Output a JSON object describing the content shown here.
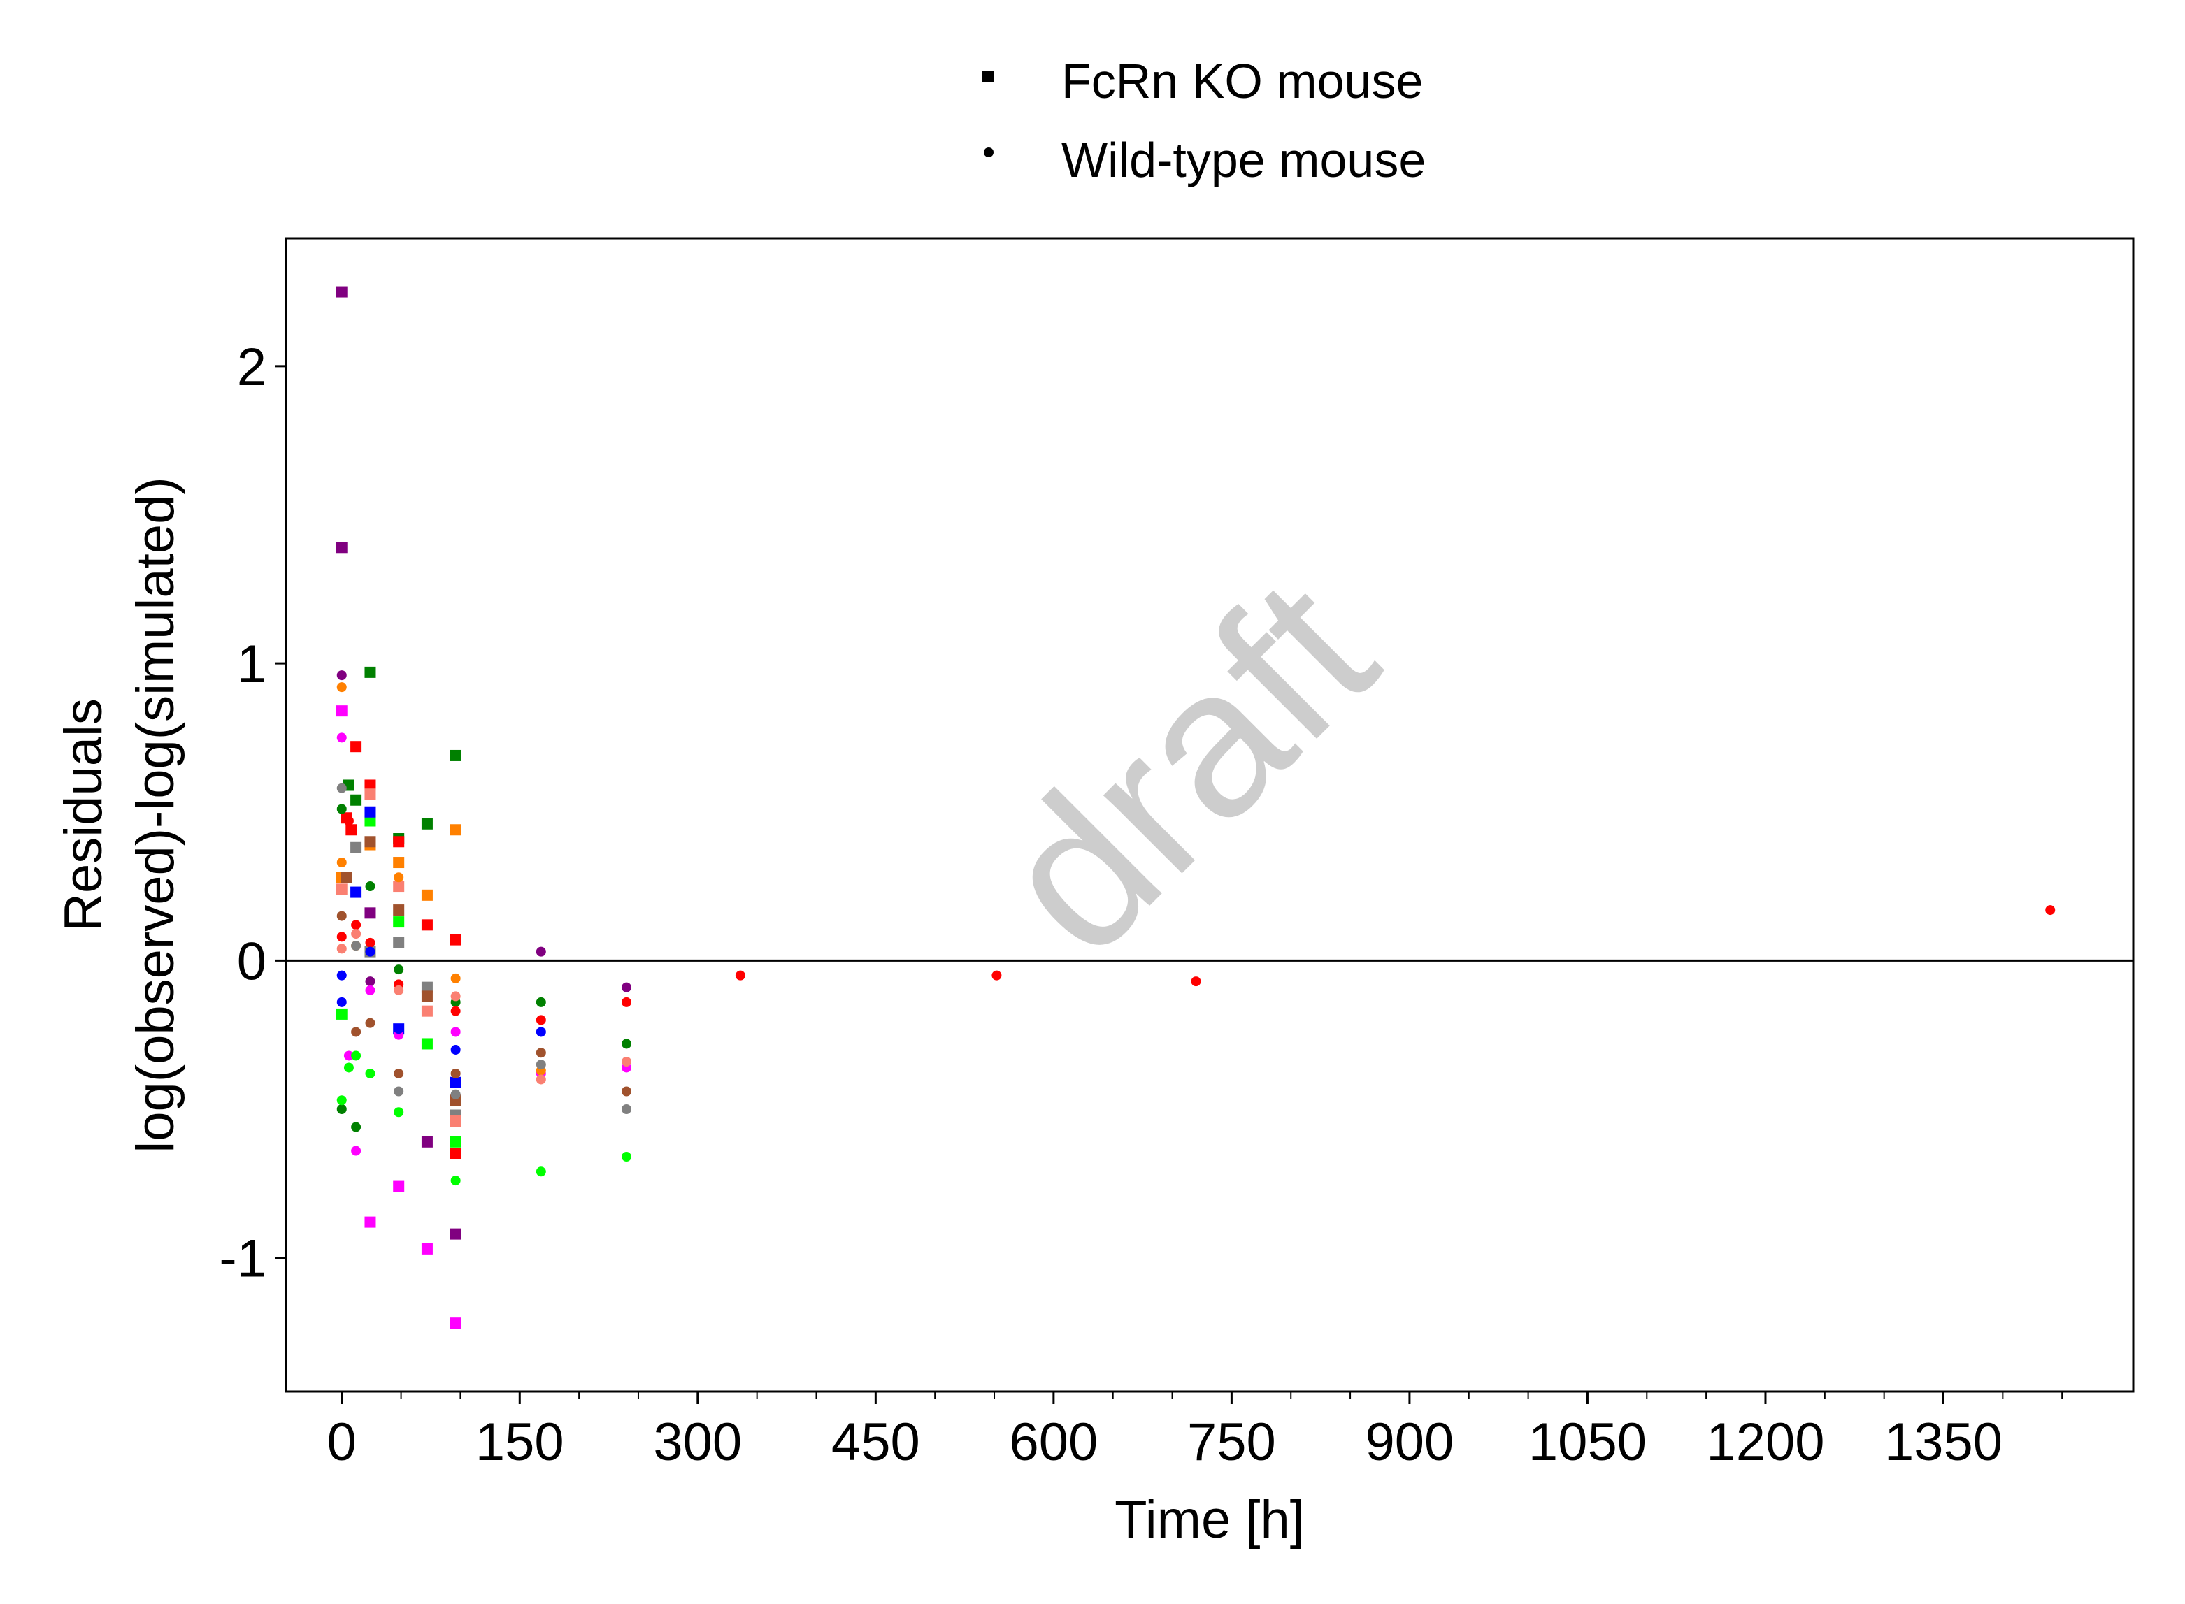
{
  "chart_data": {
    "type": "scatter",
    "xlabel": "Time [h]",
    "ylabel_line1": "Residuals",
    "ylabel_line2": "log(observed)-log(simulated)",
    "xlim": [
      -47,
      1510
    ],
    "ylim": [
      -1.45,
      2.43
    ],
    "xticks": [
      0,
      150,
      300,
      450,
      600,
      750,
      900,
      1050,
      1200,
      1350
    ],
    "xtick_labels": [
      "0",
      "150",
      "300",
      "450",
      "600",
      "750",
      "900",
      "1050",
      "1200",
      "1350"
    ],
    "yticks": [
      -1,
      0,
      1,
      2
    ],
    "ytick_labels": [
      "-1",
      "0",
      "1",
      "2"
    ],
    "reference_line_y": 0,
    "grid": false,
    "watermark": "draft",
    "legend": {
      "placement": "top-center",
      "entries": [
        {
          "label": "FcRn KO mouse",
          "marker": "square"
        },
        {
          "label": "Wild-type mouse",
          "marker": "circle"
        }
      ]
    },
    "series": [
      {
        "marker": "square",
        "color": "#800080",
        "points": [
          [
            0,
            2.25
          ],
          [
            0,
            1.39
          ],
          [
            24,
            0.16
          ],
          [
            72,
            -0.61
          ],
          [
            96,
            -0.92
          ]
        ]
      },
      {
        "marker": "square",
        "color": "#FF00FF",
        "points": [
          [
            0,
            0.84
          ],
          [
            24,
            -0.88
          ],
          [
            48,
            -0.76
          ],
          [
            72,
            -0.97
          ],
          [
            96,
            -1.22
          ]
        ]
      },
      {
        "marker": "square",
        "color": "#008000",
        "points": [
          [
            6,
            0.59
          ],
          [
            12,
            0.54
          ],
          [
            24,
            0.97
          ],
          [
            48,
            0.41
          ],
          [
            72,
            0.46
          ],
          [
            96,
            0.69
          ]
        ]
      },
      {
        "marker": "square",
        "color": "#FF0000",
        "points": [
          [
            4,
            0.48
          ],
          [
            8,
            0.44
          ],
          [
            12,
            0.72
          ],
          [
            24,
            0.59
          ],
          [
            48,
            0.4
          ],
          [
            72,
            0.12
          ],
          [
            96,
            0.07
          ],
          [
            96,
            -0.65
          ]
        ]
      },
      {
        "marker": "square",
        "color": "#FF8000",
        "points": [
          [
            0,
            0.28
          ],
          [
            24,
            0.39
          ],
          [
            48,
            0.33
          ],
          [
            72,
            0.22
          ],
          [
            96,
            0.44
          ]
        ]
      },
      {
        "marker": "square",
        "color": "#00FF00",
        "points": [
          [
            0,
            -0.18
          ],
          [
            24,
            0.47
          ],
          [
            48,
            0.13
          ],
          [
            72,
            -0.28
          ],
          [
            96,
            -0.61
          ]
        ]
      },
      {
        "marker": "square",
        "color": "#0000FF",
        "points": [
          [
            12,
            0.23
          ],
          [
            24,
            0.5
          ],
          [
            48,
            -0.23
          ],
          [
            96,
            -0.41
          ]
        ]
      },
      {
        "marker": "square",
        "color": "#808080",
        "points": [
          [
            12,
            0.38
          ],
          [
            24,
            0.03
          ],
          [
            48,
            0.06
          ],
          [
            72,
            -0.09
          ],
          [
            96,
            -0.52
          ]
        ]
      },
      {
        "marker": "square",
        "color": "#A0522D",
        "points": [
          [
            4,
            0.28
          ],
          [
            24,
            0.4
          ],
          [
            48,
            0.17
          ],
          [
            72,
            -0.12
          ],
          [
            96,
            -0.47
          ]
        ]
      },
      {
        "marker": "square",
        "color": "#FA8072",
        "points": [
          [
            0,
            0.24
          ],
          [
            24,
            0.56
          ],
          [
            48,
            0.25
          ],
          [
            72,
            -0.17
          ],
          [
            96,
            -0.54
          ]
        ]
      },
      {
        "marker": "circle",
        "color": "#800080",
        "points": [
          [
            0,
            0.96
          ],
          [
            24,
            -0.07
          ],
          [
            168,
            0.03
          ],
          [
            240,
            -0.09
          ]
        ]
      },
      {
        "marker": "circle",
        "color": "#FF00FF",
        "points": [
          [
            0,
            0.75
          ],
          [
            6,
            -0.32
          ],
          [
            12,
            -0.64
          ],
          [
            24,
            -0.1
          ],
          [
            48,
            -0.25
          ],
          [
            96,
            -0.24
          ],
          [
            168,
            -0.38
          ],
          [
            240,
            -0.36
          ]
        ]
      },
      {
        "marker": "circle",
        "color": "#FF8000",
        "points": [
          [
            0,
            0.92
          ],
          [
            0,
            0.33
          ],
          [
            12,
            0.05
          ],
          [
            48,
            0.28
          ],
          [
            96,
            -0.06
          ],
          [
            168,
            -0.37
          ]
        ]
      },
      {
        "marker": "circle",
        "color": "#008000",
        "points": [
          [
            0,
            0.51
          ],
          [
            0,
            -0.5
          ],
          [
            12,
            -0.56
          ],
          [
            24,
            0.25
          ],
          [
            48,
            -0.03
          ],
          [
            96,
            -0.14
          ],
          [
            168,
            -0.14
          ],
          [
            240,
            -0.28
          ]
        ]
      },
      {
        "marker": "circle",
        "color": "#00FF00",
        "points": [
          [
            0,
            -0.47
          ],
          [
            6,
            -0.36
          ],
          [
            12,
            -0.32
          ],
          [
            24,
            -0.38
          ],
          [
            48,
            -0.51
          ],
          [
            96,
            -0.74
          ],
          [
            168,
            -0.71
          ],
          [
            240,
            -0.66
          ]
        ]
      },
      {
        "marker": "circle",
        "color": "#FF0000",
        "points": [
          [
            0,
            0.08
          ],
          [
            6,
            0.47
          ],
          [
            12,
            0.12
          ],
          [
            24,
            0.06
          ],
          [
            48,
            -0.08
          ],
          [
            96,
            -0.17
          ],
          [
            168,
            -0.2
          ],
          [
            240,
            -0.14
          ],
          [
            336,
            -0.05
          ],
          [
            552,
            -0.05
          ],
          [
            720,
            -0.07
          ],
          [
            1440,
            0.17
          ]
        ]
      },
      {
        "marker": "circle",
        "color": "#0000FF",
        "points": [
          [
            0,
            -0.05
          ],
          [
            0,
            -0.14
          ],
          [
            24,
            0.03
          ],
          [
            48,
            -0.23
          ],
          [
            96,
            -0.3
          ],
          [
            168,
            -0.24
          ]
        ]
      },
      {
        "marker": "circle",
        "color": "#A0522D",
        "points": [
          [
            0,
            0.15
          ],
          [
            12,
            -0.24
          ],
          [
            24,
            -0.21
          ],
          [
            48,
            -0.38
          ],
          [
            96,
            -0.38
          ],
          [
            168,
            -0.31
          ],
          [
            240,
            -0.44
          ]
        ]
      },
      {
        "marker": "circle",
        "color": "#808080",
        "points": [
          [
            0,
            0.58
          ],
          [
            12,
            0.05
          ],
          [
            48,
            -0.44
          ],
          [
            96,
            -0.45
          ],
          [
            168,
            -0.35
          ],
          [
            240,
            -0.5
          ]
        ]
      },
      {
        "marker": "circle",
        "color": "#FA8072",
        "points": [
          [
            0,
            0.04
          ],
          [
            12,
            0.09
          ],
          [
            48,
            -0.1
          ],
          [
            96,
            -0.12
          ],
          [
            168,
            -0.4
          ],
          [
            240,
            -0.34
          ]
        ]
      }
    ]
  }
}
